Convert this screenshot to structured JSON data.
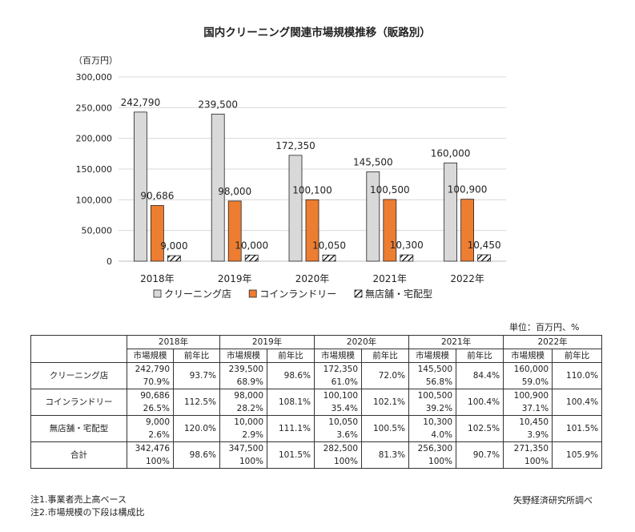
{
  "chart_data": {
    "type": "bar",
    "title": "国内クリーニング関連市場規模推移（販路別）",
    "yunit": "（百万円）",
    "categories": [
      "2018年",
      "2019年",
      "2020年",
      "2021年",
      "2022年"
    ],
    "yticks": [
      "0",
      "50,000",
      "100,000",
      "150,000",
      "200,000",
      "250,000",
      "300,000"
    ],
    "ylim": [
      0,
      300000
    ],
    "grid": true,
    "legend_position": "bottom",
    "series": [
      {
        "name": "クリーニング店",
        "color": "#d9d9d9",
        "pattern": "solid",
        "values": [
          242790,
          239500,
          172350,
          145500,
          160000
        ],
        "labels": [
          "242,790",
          "239,500",
          "172,350",
          "145,500",
          "160,000"
        ]
      },
      {
        "name": "コインランドリー",
        "color": "#ed7d31",
        "pattern": "solid",
        "values": [
          90686,
          98000,
          100100,
          100500,
          100900
        ],
        "labels": [
          "90,686",
          "98,000",
          "100,100",
          "100,500",
          "100,900"
        ]
      },
      {
        "name": "無店舗・宅配型",
        "color": "#ffffff",
        "pattern": "hatch",
        "values": [
          9000,
          10000,
          10050,
          10300,
          10450
        ],
        "labels": [
          "9,000",
          "10,000",
          "10,050",
          "10,300",
          "10,450"
        ]
      }
    ]
  },
  "table": {
    "unit_note": "単位：百万円、%",
    "years": [
      "2018年",
      "2019年",
      "2020年",
      "2021年",
      "2022年"
    ],
    "sub_headers": {
      "size": "市場規模",
      "yoy": "前年比"
    },
    "rows": [
      {
        "label": "クリーニング店",
        "cells": [
          {
            "size": "242,790",
            "share": "70.9%",
            "yoy": "93.7%"
          },
          {
            "size": "239,500",
            "share": "68.9%",
            "yoy": "98.6%"
          },
          {
            "size": "172,350",
            "share": "61.0%",
            "yoy": "72.0%"
          },
          {
            "size": "145,500",
            "share": "56.8%",
            "yoy": "84.4%"
          },
          {
            "size": "160,000",
            "share": "59.0%",
            "yoy": "110.0%"
          }
        ]
      },
      {
        "label": "コインランドリー",
        "cells": [
          {
            "size": "90,686",
            "share": "26.5%",
            "yoy": "112.5%"
          },
          {
            "size": "98,000",
            "share": "28.2%",
            "yoy": "108.1%"
          },
          {
            "size": "100,100",
            "share": "35.4%",
            "yoy": "102.1%"
          },
          {
            "size": "100,500",
            "share": "39.2%",
            "yoy": "100.4%"
          },
          {
            "size": "100,900",
            "share": "37.1%",
            "yoy": "100.4%"
          }
        ]
      },
      {
        "label": "無店舗・宅配型",
        "cells": [
          {
            "size": "9,000",
            "share": "2.6%",
            "yoy": "120.0%"
          },
          {
            "size": "10,000",
            "share": "2.9%",
            "yoy": "111.1%"
          },
          {
            "size": "10,050",
            "share": "3.6%",
            "yoy": "100.5%"
          },
          {
            "size": "10,300",
            "share": "4.0%",
            "yoy": "102.5%"
          },
          {
            "size": "10,450",
            "share": "3.9%",
            "yoy": "101.5%"
          }
        ]
      },
      {
        "label": "合計",
        "cells": [
          {
            "size": "342,476",
            "share": "100%",
            "yoy": "98.6%"
          },
          {
            "size": "347,500",
            "share": "100%",
            "yoy": "101.5%"
          },
          {
            "size": "282,500",
            "share": "100%",
            "yoy": "81.3%"
          },
          {
            "size": "256,300",
            "share": "100%",
            "yoy": "90.7%"
          },
          {
            "size": "271,350",
            "share": "100%",
            "yoy": "105.9%"
          }
        ]
      }
    ]
  },
  "notes": [
    "注1.事業者売上高ベース",
    "注2.市場規模の下段は構成比"
  ],
  "source": "矢野経済研究所調べ"
}
